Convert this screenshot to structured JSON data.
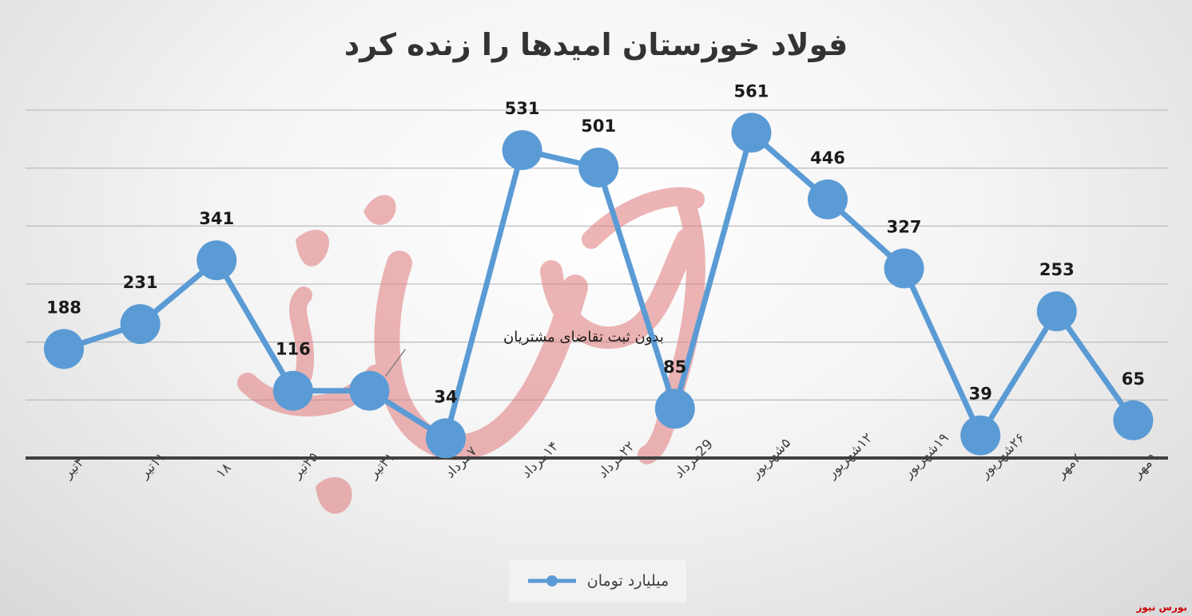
{
  "chart_data": {
    "type": "line",
    "title": "فولاد خوزستان امیدها را زنده کرد",
    "categories": [
      "۴تیر",
      "۱۱تیر",
      "۱۸",
      "۲۵تیر",
      "۳۱تیر",
      "۷مرداد",
      "۱۴مرداد",
      "۲۲مرداد",
      "29مرداد",
      "۵شهریور",
      "۱۲شهریور",
      "۱۹شهریور",
      "۲۶شهریور",
      "۲مهر",
      "۹مهر"
    ],
    "series": [
      {
        "name": "میلیارد تومان",
        "values": [
          188,
          231,
          341,
          116,
          116,
          34,
          531,
          501,
          85,
          561,
          446,
          327,
          39,
          253,
          65
        ],
        "data_labels": [
          "188",
          "231",
          "341",
          "116",
          "",
          "34",
          "531",
          "501",
          "85",
          "561",
          "446",
          "327",
          "39",
          "253",
          "65"
        ],
        "color": "#5b9bd5"
      }
    ],
    "ylim": [
      0,
      600
    ],
    "grid": true,
    "legend": "bottom",
    "annotations": [
      {
        "category_index": 4,
        "text": "بدون ثبت تقاضای مشتریان"
      }
    ]
  },
  "watermark": {
    "text": "بورس نیوز",
    "color": "#cc0000"
  }
}
